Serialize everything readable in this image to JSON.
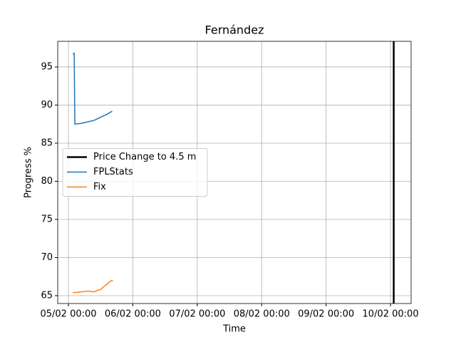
{
  "chart_data": {
    "type": "line",
    "title": "Fernández",
    "x_label": "Time",
    "y_label": "Progress %",
    "xlim": [
      4.834,
      10.32
    ],
    "ylim": [
      63.97,
      98.36
    ],
    "xticks": [
      {
        "value": 5,
        "label": "05/02 00:00"
      },
      {
        "value": 6,
        "label": "06/02 00:00"
      },
      {
        "value": 7,
        "label": "07/02 00:00"
      },
      {
        "value": 8,
        "label": "08/02 00:00"
      },
      {
        "value": 9,
        "label": "09/02 00:00"
      },
      {
        "value": 10,
        "label": "10/02 00:00"
      }
    ],
    "yticks": [
      65,
      70,
      75,
      80,
      85,
      90,
      95
    ],
    "grid": true,
    "legend": "center left",
    "vlines": [
      {
        "name": "Price Change to 4.5 m",
        "x": 10.05,
        "color": "#000000"
      }
    ],
    "series": [
      {
        "name": "FPLStats",
        "color": "#1f77b4",
        "x": [
          5.07,
          5.09,
          5.1,
          5.2,
          5.3,
          5.4,
          5.5,
          5.6,
          5.68
        ],
        "values": [
          96.7,
          96.8,
          87.5,
          87.6,
          87.8,
          88.0,
          88.4,
          88.8,
          89.2
        ]
      },
      {
        "name": "Fix",
        "color": "#ff7f0e",
        "x": [
          5.07,
          5.2,
          5.3,
          5.4,
          5.45,
          5.5,
          5.55,
          5.6,
          5.65,
          5.69
        ],
        "values": [
          65.4,
          65.5,
          65.6,
          65.5,
          65.7,
          65.8,
          66.2,
          66.5,
          66.9,
          67.0
        ]
      }
    ]
  }
}
